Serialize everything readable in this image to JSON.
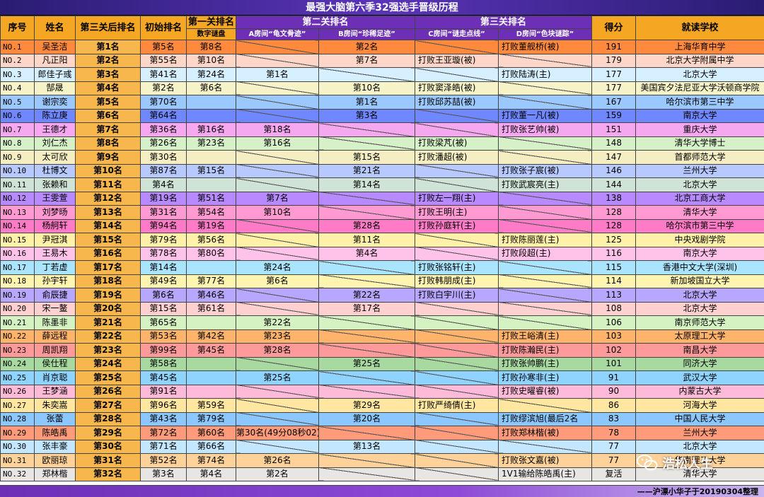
{
  "title": "最强大脑第六季32强选手晋级历程",
  "headers": {
    "no": "序号",
    "name": "姓名",
    "rank3": "第三关后排名",
    "initial": "初始排名",
    "level1": "第一关排名",
    "level1_sub": "数字谜盘",
    "level2": "第二关排名",
    "level2_a": "A房间“龟文骨迹”",
    "level2_b": "B房间“珍稀足迹”",
    "level3": "第三关排名",
    "level3_c": "C房间“谜走点线”",
    "level3_d": "D房间“色块谜踪”",
    "score": "得分",
    "school": "就读学校"
  },
  "row_colors": [
    "#ff8a3d",
    "#ffd6c7",
    "#d6f0ff",
    "#f7f3c8",
    "#9bc8ff",
    "#6f88ff",
    "#f5a8f0",
    "#d6f0c8",
    "#f5eec2",
    "#b7c9ff",
    "#cfe3d6",
    "#b78bff",
    "#ff9ad2",
    "#ff7ac7",
    "#fff2a8",
    "#ffc3ea",
    "#a9e5ff",
    "#fff4b0",
    "#b7a7ff",
    "#ffd0d0",
    "#d4f2c2",
    "#ffb36b",
    "#ff9a9a",
    "#a7d9a0",
    "#8fd3ff",
    "#ffb9d9",
    "#ffe7a1",
    "#8cc8ff",
    "#ff9b7a",
    "#c2e7ff",
    "#ffd29a",
    "#e8e6e2"
  ],
  "rows": [
    {
      "no": "NO.1",
      "name": "吴圣洁",
      "rank": "第1名",
      "initial": "第5名",
      "l1": "第8名",
      "a": "",
      "b": "第2名",
      "c": "",
      "d": "打败董舰桥(被)",
      "score": "191",
      "school": "上海华育中学"
    },
    {
      "no": "NO.2",
      "name": "凡正阳",
      "rank": "第2名",
      "initial": "第55名",
      "l1": "第10名",
      "a": "",
      "b": "第7名",
      "c": "打败王亚璇(被)",
      "d": "",
      "score": "179",
      "school": "北京大学附属中学"
    },
    {
      "no": "NO.3",
      "name": "郎佳子彧",
      "rank": "第3名",
      "initial": "第41名",
      "l1": "第24名",
      "a": "第1名",
      "b": "",
      "c": "",
      "d": "打败陆涛(主)",
      "score": "177",
      "school": "北京大学"
    },
    {
      "no": "NO.4",
      "name": "郜晟",
      "rank": "第4名",
      "initial": "第2名",
      "l1": "第6名",
      "a": "",
      "b": "第10名",
      "c": "打败窦泽皓(被)",
      "d": "",
      "score": "177",
      "school": "美国宾夕法尼亚大学沃顿商学院"
    },
    {
      "no": "NO.5",
      "name": "谢宗奕",
      "rank": "第5名",
      "initial": "第70名",
      "l1": "",
      "a": "",
      "b": "第1名",
      "c": "打败邱苏喆(被)",
      "d": "",
      "score": "167",
      "school": "哈尔滨市第三中学"
    },
    {
      "no": "NO.6",
      "name": "陈立庚",
      "rank": "第6名",
      "initial": "第64名",
      "l1": "",
      "a": "",
      "b": "第3名",
      "c": "",
      "d": "打败董一凡(被)",
      "score": "159",
      "school": "南京大学"
    },
    {
      "no": "NO.7",
      "name": "王德才",
      "rank": "第7名",
      "initial": "第36名",
      "l1": "第16名",
      "a": "第18名",
      "b": "",
      "c": "",
      "d": "打败张艺帅(被)",
      "score": "151",
      "school": "重庆大学"
    },
    {
      "no": "NO.8",
      "name": "刘仁杰",
      "rank": "第8名",
      "initial": "第26名",
      "l1": "第23名",
      "a": "第16名",
      "b": "",
      "c": "打败梁芃(被)",
      "d": "",
      "score": "148",
      "school": "清华大学博士"
    },
    {
      "no": "NO.9",
      "name": "太可欣",
      "rank": "第9名",
      "initial": "第30名",
      "l1": "",
      "a": "",
      "b": "第15名",
      "c": "打败潘超(被)",
      "d": "",
      "score": "147",
      "school": "首都师范大学"
    },
    {
      "no": "NO.10",
      "name": "杜博文",
      "rank": "第10名",
      "initial": "第87名",
      "l1": "第15名",
      "a": "",
      "b": "第21名",
      "c": "",
      "d": "打败张子宸(被)",
      "score": "146",
      "school": "兰州大学"
    },
    {
      "no": "NO.11",
      "name": "张赖和",
      "rank": "第11名",
      "initial": "第4名",
      "l1": "",
      "a": "",
      "b": "第14名",
      "c": "",
      "d": "打败武宸亮(主)",
      "score": "144",
      "school": "北京大学"
    },
    {
      "no": "NO.12",
      "name": "王雯萱",
      "rank": "第12名",
      "initial": "第19名",
      "l1": "第51名",
      "a": "第7名",
      "b": "",
      "c": "打败左一翔(主)",
      "d": "",
      "score": "138",
      "school": "北京工商大学"
    },
    {
      "no": "NO.13",
      "name": "刘梦旸",
      "rank": "第13名",
      "initial": "第31名",
      "l1": "第54名",
      "a": "第10名",
      "b": "",
      "c": "打败王明(主)",
      "d": "",
      "score": "128",
      "school": "清华大学"
    },
    {
      "no": "NO.14",
      "name": "杨舸轩",
      "rank": "第14名",
      "initial": "第94名",
      "l1": "第19名",
      "a": "",
      "b": "第28名",
      "c": "打败孙庭轩(主)",
      "d": "",
      "score": "128",
      "school": "哈尔滨市第三中学"
    },
    {
      "no": "NO.15",
      "name": "尹冠淇",
      "rank": "第15名",
      "initial": "第79名",
      "l1": "第56名",
      "a": "",
      "b": "第11名",
      "c": "",
      "d": "打败陈丽莲(主)",
      "score": "125",
      "school": "中央戏剧学院"
    },
    {
      "no": "NO.16",
      "name": "王易木",
      "rank": "第16名",
      "initial": "第78名",
      "l1": "第80名",
      "a": "",
      "b": "第4名",
      "c": "",
      "d": "打败段超(主)",
      "score": "116",
      "school": "南京大学"
    },
    {
      "no": "NO.17",
      "name": "丁若虚",
      "rank": "第17名",
      "initial": "第14名",
      "l1": "",
      "a": "第24名",
      "b": "",
      "c": "打败张铭轩(主)",
      "d": "",
      "score": "115",
      "school": "香港中文大学(深圳)"
    },
    {
      "no": "NO.18",
      "name": "孙宇轩",
      "rank": "第18名",
      "initial": "第49名",
      "l1": "第77名",
      "a": "第6名",
      "b": "",
      "c": "打败韩朋成(主)",
      "d": "",
      "score": "114",
      "school": "新加坡国立大学"
    },
    {
      "no": "NO.19",
      "name": "俞辰捷",
      "rank": "第19名",
      "initial": "第6名",
      "l1": "第46名",
      "a": "",
      "b": "第22名",
      "c": "打败白宇川(主)",
      "d": "",
      "score": "113",
      "school": "北京大学"
    },
    {
      "no": "NO.20",
      "name": "宋一鳌",
      "rank": "第20名",
      "initial": "第15名",
      "l1": "第61名",
      "a": "",
      "b": "第17名",
      "c": "",
      "d": "",
      "score": "108",
      "school": "北京大学"
    },
    {
      "no": "NO.21",
      "name": "陈墨非",
      "rank": "第21名",
      "initial": "第65名",
      "l1": "",
      "a": "第22名",
      "b": "",
      "c": "",
      "d": "",
      "score": "106",
      "school": "南京师范大学"
    },
    {
      "no": "NO.22",
      "name": "薛远程",
      "rank": "第22名",
      "initial": "第53名",
      "l1": "第42名",
      "a": "第23名",
      "b": "",
      "c": "",
      "d": "打败王峪清(主)",
      "score": "103",
      "school": "太原理工大学"
    },
    {
      "no": "NO.23",
      "name": "周凯翔",
      "rank": "第23名",
      "initial": "第99名",
      "l1": "第45名",
      "a": "第28名",
      "b": "",
      "c": "",
      "d": "打败陈瀚民(主)",
      "score": "102",
      "school": "南昌大学"
    },
    {
      "no": "NO.24",
      "name": "侯仕程",
      "rank": "第24名",
      "initial": "第58名",
      "l1": "",
      "a": "",
      "b": "第25名",
      "c": "",
      "d": "打败张帅鹏(主)",
      "score": "101",
      "school": "同济大学"
    },
    {
      "no": "NO.25",
      "name": "肖京聪",
      "rank": "第25名",
      "initial": "第45名",
      "l1": "",
      "a": "第25名",
      "b": "",
      "c": "",
      "d": "打败孙寒非(主)",
      "score": "91",
      "school": "武汉大学"
    },
    {
      "no": "NO.26",
      "name": "王梦涵",
      "rank": "第26名",
      "initial": "第91名",
      "l1": "",
      "a": "",
      "b": "",
      "c": "",
      "d": "打败史曜睿(被)",
      "score": "90",
      "school": "内蒙古大学"
    },
    {
      "no": "NO.27",
      "name": "朱奕嵩",
      "rank": "第27名",
      "initial": "第96名",
      "l1": "第59名",
      "a": "",
      "b": "第29名",
      "c": "打败严绮倩(主)",
      "d": "",
      "score": "86",
      "school": "河海大学"
    },
    {
      "no": "NO.28",
      "name": "张蕾",
      "rank": "第28名",
      "initial": "第43名",
      "l1": "第79名",
      "a": "",
      "b": "第20名",
      "c": "",
      "d": "打败缪滨旭(最后2名",
      "score": "83",
      "school": "中国人民大学"
    },
    {
      "no": "NO.29",
      "name": "陈皓禹",
      "rank": "第29名",
      "initial": "第72名",
      "l1": "第60名",
      "a": "第30名(49分08秒02)",
      "b": "",
      "c": "",
      "d": "打败郑林楷(被)",
      "score": "78",
      "school": "兰州大学"
    },
    {
      "no": "NO.30",
      "name": "张丰豪",
      "rank": "第30名",
      "initial": "第71名",
      "l1": "第66名",
      "a": "",
      "b": "第13名",
      "c": "",
      "d": "",
      "score": "77",
      "school": "北京大学"
    },
    {
      "no": "NO.31",
      "name": "欧丽琼",
      "rank": "第31名",
      "initial": "第52名",
      "l1": "第74名",
      "a": "第26名",
      "b": "",
      "c": "",
      "d": "打败张文嘉(被)",
      "score": "77",
      "school": "华南理工大学"
    },
    {
      "no": "NO.32",
      "name": "郑林楷",
      "rank": "第32名",
      "initial": "第3名",
      "l1": "第4名",
      "a": "第2名",
      "b": "",
      "c": "",
      "d": "1V1输给陈皓禹(主)",
      "score": "复活",
      "school": "清华大学"
    }
  ],
  "footer": "——沪漂小华子于20190304整理",
  "watermark": "浩松人生"
}
